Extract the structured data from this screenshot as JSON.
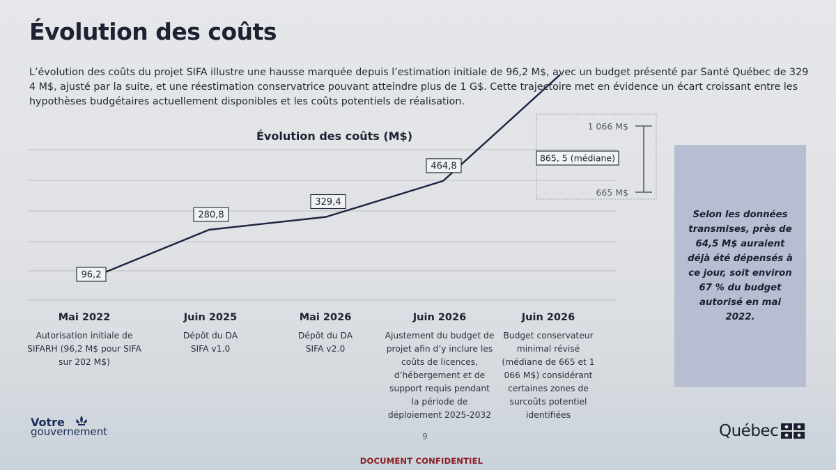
{
  "page": {
    "title": "Évolution des coûts",
    "intro": "L’évolution des coûts du projet SIFA illustre une hausse marquée depuis l’estimation initiale de 96,2 M$, avec un budget présenté par Santé Québec de 329 4 M$, ajusté par la suite, et une réestimation conservatrice pouvant atteindre plus de 1 G$. Cette trajectoire met en évidence un écart croissant entre les hypothèses budgétaires actuellement disponibles et les coûts potentiels de réalisation."
  },
  "chart_data": {
    "type": "line",
    "title": "Évolution des coûts (M$)",
    "categories": [
      "Mai 2022",
      "Juin 2025",
      "Mai 2026",
      "Juin 2026",
      "Juin 2026"
    ],
    "values": [
      96.2,
      280.8,
      329.4,
      464.8,
      865.5
    ],
    "data_labels": [
      "96,2",
      "280,8",
      "329,4",
      "464,8",
      "865, 5 (médiane)"
    ],
    "range": {
      "high": 1066,
      "low": 665,
      "high_label": "1 066 M$",
      "low_label": "665 M$"
    },
    "grid": true,
    "colors": {
      "line": "#1c2340",
      "grid": "#b9bcc2",
      "range": "#555b65"
    }
  },
  "milestones": [
    {
      "date": "Mai 2022",
      "desc": "Autorisation initiale de SIFARH (96,2 M$ pour SIFA sur 202 M$)"
    },
    {
      "date": "Juin 2025",
      "desc": "Dépôt du DA SIFA v1.0"
    },
    {
      "date": "Mai 2026",
      "desc": "Dépôt du DA SIFA v2.0"
    },
    {
      "date": "Juin 2026",
      "desc": "Ajustement du budget de projet afin d’y inclure les coûts de licences, d’hébergement et de support requis pendant la période de déploiement 2025-2032"
    },
    {
      "date": "Juin 2026",
      "desc": "Budget conservateur minimal révisé (médiane de 665 et 1 066 M$) considérant certaines zones de surcoûts potentiel identifiées"
    }
  ],
  "side_note": "Selon les données transmises, près de 64,5 M$ auraient déjà été dépensés à ce jour, soit environ 67 % du budget autorisé en mai 2022.",
  "footer": {
    "left_logo_line1": "Votre",
    "left_logo_line2": "gouvernement",
    "page_number": "9",
    "right_logo": "Québec",
    "confidential": "DOCUMENT CONFIDENTIEL",
    "brand_color": "#1a2b59",
    "confidential_color": "#8a1e24"
  }
}
